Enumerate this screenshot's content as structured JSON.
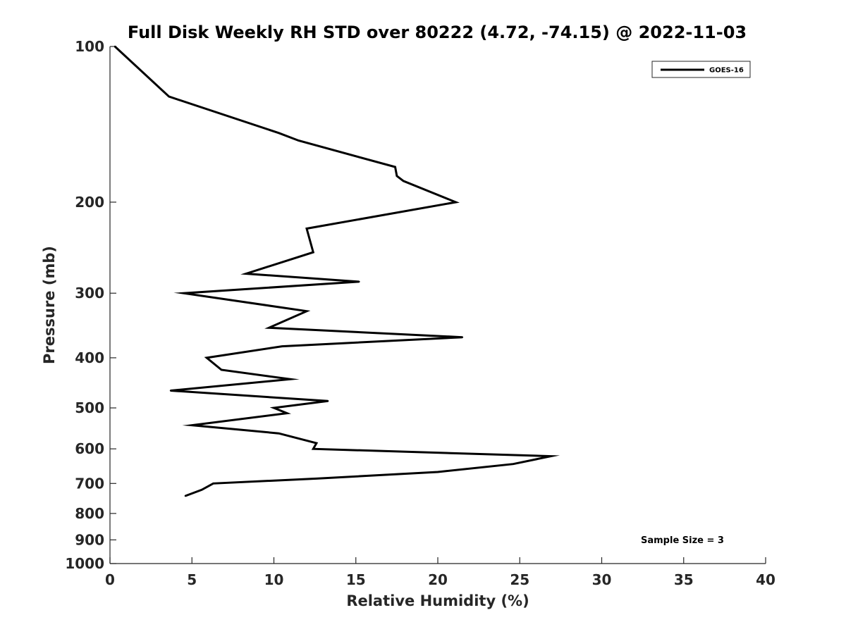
{
  "chart_data": {
    "type": "line",
    "title": "Full Disk Weekly RH STD over 80222 (4.72, -74.15) @ 2022-11-03",
    "xlabel": "Relative Humidity (%)",
    "ylabel": "Pressure (mb)",
    "xlim": [
      0,
      40
    ],
    "ylim": [
      100,
      1000
    ],
    "y_scale": "log",
    "y_reversed": true,
    "grid": false,
    "x_ticks": [
      0,
      5,
      10,
      15,
      20,
      25,
      30,
      35,
      40
    ],
    "y_ticks": [
      100,
      200,
      300,
      400,
      500,
      600,
      700,
      800,
      900,
      1000
    ],
    "legend_position": "top-right",
    "annotation": "Sample Size = 3",
    "series": [
      {
        "name": "GOES-16",
        "color": "#000000",
        "points": [
          {
            "x": 0.3,
            "p": 100
          },
          {
            "x": 3.6,
            "p": 125
          },
          {
            "x": 10.3,
            "p": 147
          },
          {
            "x": 11.5,
            "p": 152
          },
          {
            "x": 17.4,
            "p": 171
          },
          {
            "x": 17.5,
            "p": 178
          },
          {
            "x": 17.9,
            "p": 182
          },
          {
            "x": 21.1,
            "p": 200
          },
          {
            "x": 12.0,
            "p": 225
          },
          {
            "x": 12.4,
            "p": 250
          },
          {
            "x": 8.3,
            "p": 275
          },
          {
            "x": 15.2,
            "p": 285
          },
          {
            "x": 4.5,
            "p": 300
          },
          {
            "x": 12.0,
            "p": 325
          },
          {
            "x": 9.7,
            "p": 350
          },
          {
            "x": 21.5,
            "p": 365
          },
          {
            "x": 10.5,
            "p": 380
          },
          {
            "x": 5.9,
            "p": 400
          },
          {
            "x": 6.8,
            "p": 422
          },
          {
            "x": 11.0,
            "p": 440
          },
          {
            "x": 3.7,
            "p": 463
          },
          {
            "x": 13.3,
            "p": 485
          },
          {
            "x": 10.0,
            "p": 500
          },
          {
            "x": 10.8,
            "p": 512
          },
          {
            "x": 5.0,
            "p": 540
          },
          {
            "x": 10.3,
            "p": 560
          },
          {
            "x": 12.6,
            "p": 585
          },
          {
            "x": 12.4,
            "p": 600
          },
          {
            "x": 26.9,
            "p": 620
          },
          {
            "x": 24.6,
            "p": 642
          },
          {
            "x": 20.0,
            "p": 665
          },
          {
            "x": 12.6,
            "p": 685
          },
          {
            "x": 6.3,
            "p": 700
          },
          {
            "x": 5.6,
            "p": 720
          },
          {
            "x": 4.6,
            "p": 740
          }
        ]
      }
    ]
  }
}
